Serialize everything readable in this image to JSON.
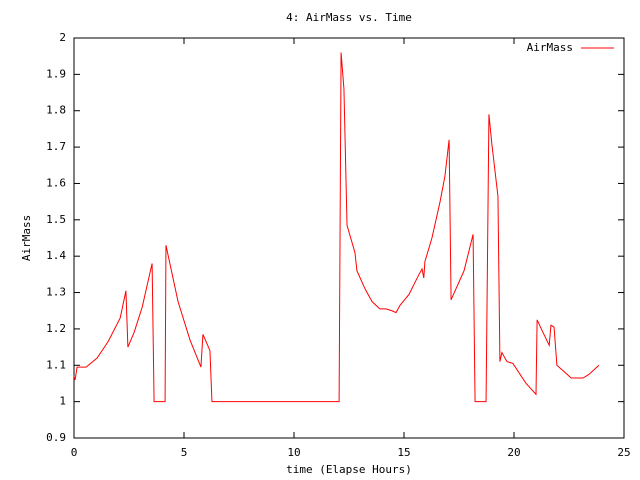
{
  "chart_data": {
    "type": "line",
    "title": "4: AirMass vs. Time",
    "xlabel": "time (Elapse Hours)",
    "ylabel": "AirMass",
    "x": [
      0,
      0.05,
      0.14,
      0.55,
      1.05,
      1.55,
      2.1,
      2.36,
      2.45,
      2.73,
      3.1,
      3.55,
      3.64,
      4.14,
      4.18,
      4.73,
      5.27,
      5.77,
      5.86,
      6.18,
      6.27,
      12.05,
      12.14,
      12.27,
      12.41,
      12.77,
      12.86,
      13.23,
      13.55,
      13.9,
      14.18,
      14.45,
      14.64,
      14.82,
      15.23,
      15.64,
      15.82,
      15.9,
      15.95,
      16.27,
      16.64,
      16.86,
      17.05,
      17.14,
      17.73,
      18.14,
      18.23,
      18.73,
      18.86,
      19,
      19.27,
      19.36,
      19.45,
      19.68,
      19.95,
      20.55,
      21,
      21.05,
      21.32,
      21.6,
      21.68,
      21.82,
      21.95,
      22.32,
      22.6,
      23.14,
      23.41,
      23.86
    ],
    "series": [
      {
        "name": "AirMass",
        "color": "#ff0000",
        "values": [
          1.07,
          1.06,
          1.095,
          1.095,
          1.12,
          1.165,
          1.23,
          1.305,
          1.15,
          1.19,
          1.26,
          1.38,
          1.0,
          1.0,
          1.43,
          1.275,
          1.17,
          1.095,
          1.185,
          1.14,
          1.0,
          1.0,
          1.96,
          1.86,
          1.485,
          1.41,
          1.36,
          1.31,
          1.275,
          1.255,
          1.255,
          1.25,
          1.245,
          1.265,
          1.295,
          1.345,
          1.365,
          1.34,
          1.385,
          1.45,
          1.55,
          1.62,
          1.72,
          1.28,
          1.36,
          1.46,
          1.0,
          1.0,
          1.79,
          1.705,
          1.565,
          1.11,
          1.135,
          1.11,
          1.105,
          1.05,
          1.02,
          1.225,
          1.19,
          1.155,
          1.21,
          1.205,
          1.1,
          1.08,
          1.065,
          1.065,
          1.075,
          1.1
        ]
      }
    ],
    "xlim": [
      0,
      25
    ],
    "xticks": [
      0,
      5,
      10,
      15,
      20,
      25
    ],
    "ylim": [
      0.9,
      2
    ],
    "yticks": [
      0.9,
      1,
      1.1,
      1.2,
      1.3,
      1.4,
      1.5,
      1.6,
      1.7,
      1.8,
      1.9,
      2
    ],
    "legend": "top-right"
  }
}
